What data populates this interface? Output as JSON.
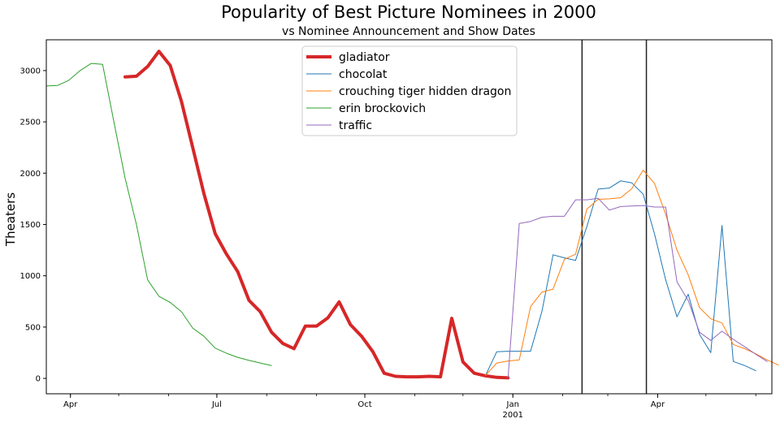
{
  "chart_data": {
    "type": "line",
    "title": "Popularity of Best Picture Nominees in 2000",
    "subtitle": "vs Nominee Announcement and Show Dates",
    "xlabel": "",
    "ylabel": "Theaters",
    "xlim": [
      "2000-03-17",
      "2001-06-11"
    ],
    "ylim": [
      -150,
      3300
    ],
    "grid": false,
    "legend_position": "top-center",
    "x_ticks": [
      {
        "date": "2000-04-01",
        "label": "Apr",
        "sublabel": ""
      },
      {
        "date": "2000-07-01",
        "label": "Jul",
        "sublabel": ""
      },
      {
        "date": "2000-10-01",
        "label": "Oct",
        "sublabel": ""
      },
      {
        "date": "2001-01-01",
        "label": "Jan",
        "sublabel": "2001"
      },
      {
        "date": "2001-04-01",
        "label": "Apr",
        "sublabel": ""
      }
    ],
    "y_ticks": [
      0,
      500,
      1000,
      1500,
      2000,
      2500,
      3000
    ],
    "vertical_lines": [
      {
        "date": "2001-02-13",
        "color": "#222222"
      },
      {
        "date": "2001-03-25",
        "color": "#222222"
      }
    ],
    "series": [
      {
        "name": "gladiator",
        "color": "#d62728",
        "width": 4,
        "points": [
          [
            "2000-05-05",
            2938
          ],
          [
            "2000-05-12",
            2945
          ],
          [
            "2000-05-19",
            3040
          ],
          [
            "2000-05-26",
            3188
          ],
          [
            "2000-06-02",
            3050
          ],
          [
            "2000-06-09",
            2700
          ],
          [
            "2000-06-16",
            2250
          ],
          [
            "2000-06-23",
            1800
          ],
          [
            "2000-06-30",
            1410
          ],
          [
            "2000-07-07",
            1210
          ],
          [
            "2000-07-14",
            1040
          ],
          [
            "2000-07-21",
            760
          ],
          [
            "2000-07-28",
            650
          ],
          [
            "2000-08-04",
            450
          ],
          [
            "2000-08-11",
            340
          ],
          [
            "2000-08-18",
            290
          ],
          [
            "2000-08-25",
            510
          ],
          [
            "2000-09-01",
            510
          ],
          [
            "2000-09-08",
            590
          ],
          [
            "2000-09-15",
            745
          ],
          [
            "2000-09-22",
            525
          ],
          [
            "2000-09-29",
            410
          ],
          [
            "2000-10-06",
            260
          ],
          [
            "2000-10-13",
            50
          ],
          [
            "2000-10-20",
            20
          ],
          [
            "2000-10-27",
            15
          ],
          [
            "2000-11-03",
            15
          ],
          [
            "2000-11-10",
            20
          ],
          [
            "2000-11-17",
            15
          ],
          [
            "2000-11-24",
            585
          ],
          [
            "2000-12-01",
            160
          ],
          [
            "2000-12-08",
            50
          ],
          [
            "2000-12-15",
            25
          ],
          [
            "2000-12-22",
            10
          ],
          [
            "2000-12-29",
            5
          ]
        ]
      },
      {
        "name": "chocolat",
        "color": "#1f77b4",
        "width": 1,
        "points": [
          [
            "2000-12-15",
            30
          ],
          [
            "2000-12-22",
            260
          ],
          [
            "2000-12-29",
            265
          ],
          [
            "2001-01-05",
            265
          ],
          [
            "2001-01-12",
            265
          ],
          [
            "2001-01-19",
            650
          ],
          [
            "2001-01-26",
            1205
          ],
          [
            "2001-02-02",
            1175
          ],
          [
            "2001-02-09",
            1150
          ],
          [
            "2001-02-16",
            1480
          ],
          [
            "2001-02-23",
            1845
          ],
          [
            "2001-03-02",
            1855
          ],
          [
            "2001-03-09",
            1925
          ],
          [
            "2001-03-16",
            1905
          ],
          [
            "2001-03-23",
            1795
          ],
          [
            "2001-03-30",
            1410
          ],
          [
            "2001-04-06",
            960
          ],
          [
            "2001-04-13",
            600
          ],
          [
            "2001-04-20",
            820
          ],
          [
            "2001-04-27",
            430
          ],
          [
            "2001-05-04",
            250
          ],
          [
            "2001-05-11",
            1490
          ],
          [
            "2001-05-18",
            165
          ],
          [
            "2001-05-25",
            125
          ],
          [
            "2001-06-01",
            75
          ]
        ]
      },
      {
        "name": "crouching tiger hidden dragon",
        "color": "#ff7f0e",
        "width": 1,
        "points": [
          [
            "2000-12-15",
            30
          ],
          [
            "2000-12-22",
            150
          ],
          [
            "2000-12-29",
            170
          ],
          [
            "2001-01-05",
            180
          ],
          [
            "2001-01-12",
            700
          ],
          [
            "2001-01-19",
            840
          ],
          [
            "2001-01-26",
            870
          ],
          [
            "2001-02-02",
            1160
          ],
          [
            "2001-02-09",
            1210
          ],
          [
            "2001-02-16",
            1650
          ],
          [
            "2001-02-23",
            1745
          ],
          [
            "2001-03-02",
            1750
          ],
          [
            "2001-03-09",
            1760
          ],
          [
            "2001-03-16",
            1850
          ],
          [
            "2001-03-23",
            2030
          ],
          [
            "2001-03-30",
            1900
          ],
          [
            "2001-04-06",
            1600
          ],
          [
            "2001-04-13",
            1250
          ],
          [
            "2001-04-20",
            1010
          ],
          [
            "2001-04-27",
            690
          ],
          [
            "2001-05-04",
            580
          ],
          [
            "2001-05-11",
            540
          ],
          [
            "2001-05-18",
            330
          ],
          [
            "2001-05-25",
            290
          ],
          [
            "2001-06-01",
            240
          ],
          [
            "2001-06-08",
            180
          ],
          [
            "2001-06-15",
            130
          ]
        ]
      },
      {
        "name": "erin brockovich",
        "color": "#2ca02c",
        "width": 1,
        "points": [
          [
            "2000-03-17",
            2850
          ],
          [
            "2000-03-24",
            2855
          ],
          [
            "2000-03-31",
            2905
          ],
          [
            "2000-04-07",
            3000
          ],
          [
            "2000-04-14",
            3070
          ],
          [
            "2000-04-21",
            3060
          ],
          [
            "2000-04-28",
            2500
          ],
          [
            "2000-05-05",
            1950
          ],
          [
            "2000-05-12",
            1500
          ],
          [
            "2000-05-19",
            960
          ],
          [
            "2000-05-26",
            800
          ],
          [
            "2000-06-02",
            740
          ],
          [
            "2000-06-09",
            650
          ],
          [
            "2000-06-16",
            490
          ],
          [
            "2000-06-23",
            410
          ],
          [
            "2000-06-30",
            295
          ],
          [
            "2000-07-07",
            245
          ],
          [
            "2000-07-14",
            205
          ],
          [
            "2000-07-21",
            175
          ],
          [
            "2000-07-28",
            150
          ],
          [
            "2000-08-04",
            125
          ]
        ]
      },
      {
        "name": "traffic",
        "color": "#9467bd",
        "width": 1,
        "points": [
          [
            "2000-12-29",
            5
          ],
          [
            "2001-01-05",
            1510
          ],
          [
            "2001-01-12",
            1530
          ],
          [
            "2001-01-19",
            1570
          ],
          [
            "2001-01-26",
            1580
          ],
          [
            "2001-02-02",
            1580
          ],
          [
            "2001-02-09",
            1740
          ],
          [
            "2001-02-16",
            1740
          ],
          [
            "2001-02-23",
            1755
          ],
          [
            "2001-03-02",
            1640
          ],
          [
            "2001-03-09",
            1675
          ],
          [
            "2001-03-16",
            1680
          ],
          [
            "2001-03-23",
            1685
          ],
          [
            "2001-03-30",
            1670
          ],
          [
            "2001-04-06",
            1670
          ],
          [
            "2001-04-13",
            940
          ],
          [
            "2001-04-20",
            760
          ],
          [
            "2001-04-27",
            450
          ],
          [
            "2001-05-04",
            370
          ],
          [
            "2001-05-11",
            460
          ],
          [
            "2001-05-18",
            380
          ],
          [
            "2001-05-25",
            310
          ],
          [
            "2001-06-01",
            235
          ],
          [
            "2001-06-08",
            165
          ]
        ]
      }
    ]
  }
}
